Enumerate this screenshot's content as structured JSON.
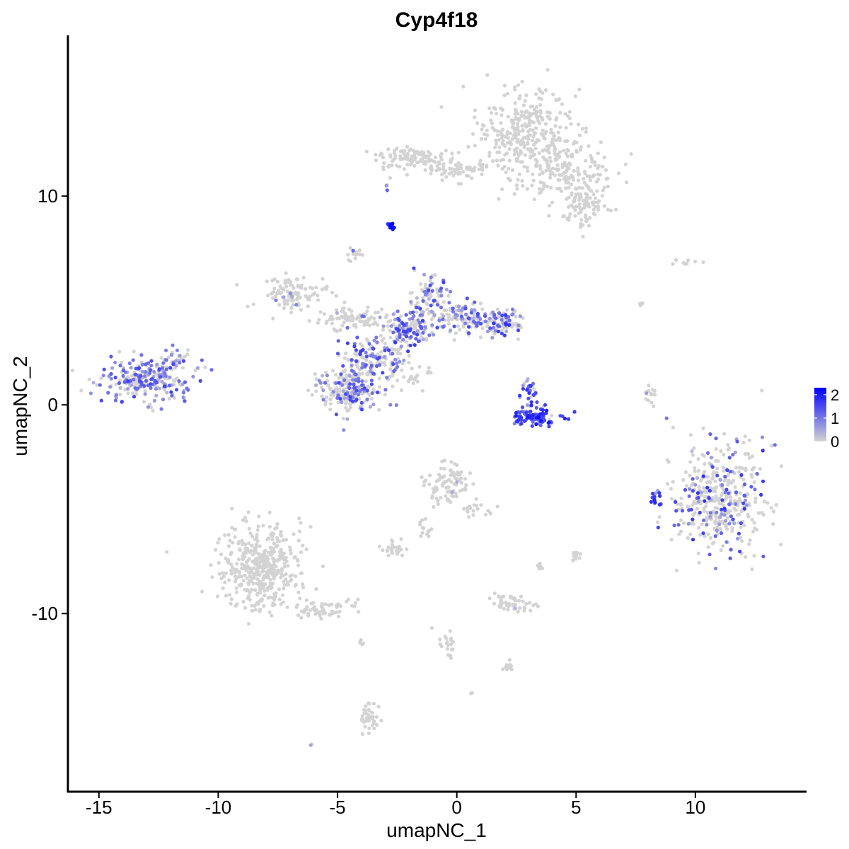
{
  "chart_data": {
    "type": "scatter",
    "title": "Cyp4f18",
    "xlabel": "umapNC_1",
    "ylabel": "umapNC_2",
    "xlim": [
      -16.3,
      14.6
    ],
    "ylim": [
      -18.5,
      17.7
    ],
    "x_ticks": [
      -15,
      -10,
      -5,
      0,
      5,
      10
    ],
    "x_tick_labels": [
      "-15",
      "-10",
      "-5",
      "0",
      "5",
      "10"
    ],
    "y_ticks": [
      -10,
      0,
      10
    ],
    "y_tick_labels": [
      "-10",
      "0",
      "10"
    ],
    "grid": false,
    "legend": {
      "placement": "right",
      "type": "colorbar",
      "ticks": [
        0,
        1,
        2
      ],
      "tick_labels": [
        "0",
        "1",
        "2"
      ],
      "range": [
        0,
        2.3
      ],
      "color_low": "#d3d3d3",
      "color_high": "#0000ff"
    },
    "point_color_low": "#d3d3d3",
    "point_color_high": "#0000ff",
    "clusters": [
      {
        "cx": 2.8,
        "cy": 13.0,
        "rx": 1.8,
        "ry": 2.0,
        "n": 320,
        "expr_frac": 0.0,
        "expr_max": 0.5
      },
      {
        "cx": 4.5,
        "cy": 11.2,
        "rx": 2.0,
        "ry": 1.3,
        "n": 160,
        "expr_frac": 0.0,
        "expr_max": 0.5
      },
      {
        "cx": 5.3,
        "cy": 9.5,
        "rx": 0.9,
        "ry": 0.9,
        "n": 80,
        "expr_frac": 0.0,
        "expr_max": 0.5
      },
      {
        "cx": -1.8,
        "cy": 11.8,
        "rx": 1.6,
        "ry": 0.5,
        "n": 120,
        "expr_frac": 0.0,
        "expr_max": 0.5
      },
      {
        "cx": 0.3,
        "cy": 11.3,
        "rx": 1.5,
        "ry": 0.4,
        "n": 60,
        "expr_frac": 0.0,
        "expr_max": 0.5
      },
      {
        "cx": -2.8,
        "cy": 8.6,
        "rx": 0.15,
        "ry": 0.2,
        "n": 12,
        "expr_frac": 1.0,
        "expr_min": 1.8,
        "expr_max": 2.3
      },
      {
        "cx": -2.9,
        "cy": 10.3,
        "rx": 0.05,
        "ry": 0.3,
        "n": 3,
        "expr_frac": 0.7,
        "expr_max": 1.5
      },
      {
        "cx": -13.0,
        "cy": 1.2,
        "rx": 1.7,
        "ry": 0.9,
        "n": 260,
        "expr_frac": 0.55,
        "expr_max": 1.6
      },
      {
        "cx": -11.8,
        "cy": 2.2,
        "rx": 0.5,
        "ry": 0.4,
        "n": 30,
        "expr_frac": 0.3,
        "expr_max": 1.2
      },
      {
        "cx": -6.8,
        "cy": 5.3,
        "rx": 1.4,
        "ry": 0.7,
        "n": 110,
        "expr_frac": 0.05,
        "expr_max": 1.0
      },
      {
        "cx": -4.6,
        "cy": 4.1,
        "rx": 1.2,
        "ry": 0.5,
        "n": 80,
        "expr_frac": 0.1,
        "expr_max": 1.2
      },
      {
        "cx": -4.5,
        "cy": 0.8,
        "rx": 1.3,
        "ry": 1.1,
        "n": 230,
        "expr_frac": 0.35,
        "expr_max": 1.6
      },
      {
        "cx": -3.5,
        "cy": 2.3,
        "rx": 1.1,
        "ry": 0.9,
        "n": 140,
        "expr_frac": 0.45,
        "expr_max": 1.7
      },
      {
        "cx": -2.1,
        "cy": 3.6,
        "rx": 1.1,
        "ry": 0.9,
        "n": 140,
        "expr_frac": 0.5,
        "expr_max": 1.7
      },
      {
        "cx": -1.2,
        "cy": 5.0,
        "rx": 0.8,
        "ry": 1.2,
        "n": 90,
        "expr_frac": 0.45,
        "expr_max": 1.6
      },
      {
        "cx": 0.4,
        "cy": 4.2,
        "rx": 1.2,
        "ry": 0.7,
        "n": 110,
        "expr_frac": 0.4,
        "expr_max": 1.6
      },
      {
        "cx": 2.0,
        "cy": 4.0,
        "rx": 0.8,
        "ry": 0.6,
        "n": 90,
        "expr_frac": 0.55,
        "expr_max": 1.8
      },
      {
        "cx": -4.3,
        "cy": 7.2,
        "rx": 0.3,
        "ry": 0.3,
        "n": 14,
        "expr_frac": 0.3,
        "expr_max": 1.2
      },
      {
        "cx": -1.9,
        "cy": 1.3,
        "rx": 1.0,
        "ry": 0.5,
        "n": 30,
        "expr_frac": 0.0,
        "expr_max": 0.5
      },
      {
        "cx": 3.3,
        "cy": -0.6,
        "rx": 0.9,
        "ry": 0.4,
        "n": 100,
        "expr_frac": 0.9,
        "expr_min": 0.9,
        "expr_max": 2.2
      },
      {
        "cx": 3.1,
        "cy": 0.6,
        "rx": 0.4,
        "ry": 0.6,
        "n": 30,
        "expr_frac": 0.8,
        "expr_max": 2.0
      },
      {
        "cx": 11.0,
        "cy": -4.5,
        "rx": 1.7,
        "ry": 2.2,
        "n": 420,
        "expr_frac": 0.25,
        "expr_max": 1.8
      },
      {
        "cx": 8.3,
        "cy": -4.5,
        "rx": 0.2,
        "ry": 0.4,
        "n": 14,
        "expr_frac": 0.9,
        "expr_max": 1.9
      },
      {
        "cx": 8.1,
        "cy": 0.5,
        "rx": 0.2,
        "ry": 0.6,
        "n": 14,
        "expr_frac": 0.2,
        "expr_max": 1.0
      },
      {
        "cx": -0.4,
        "cy": -3.8,
        "rx": 0.8,
        "ry": 0.8,
        "n": 90,
        "expr_frac": 0.05,
        "expr_max": 1.4
      },
      {
        "cx": 0.9,
        "cy": -5.0,
        "rx": 0.6,
        "ry": 0.4,
        "n": 20,
        "expr_frac": 0.0,
        "expr_max": 0.5
      },
      {
        "cx": -1.3,
        "cy": -6.0,
        "rx": 0.3,
        "ry": 0.5,
        "n": 14,
        "expr_frac": 0.0,
        "expr_max": 0.5
      },
      {
        "cx": -8.2,
        "cy": -7.8,
        "rx": 1.5,
        "ry": 1.8,
        "n": 420,
        "expr_frac": 0.0,
        "expr_max": 0.6
      },
      {
        "cx": -5.6,
        "cy": -9.8,
        "rx": 1.2,
        "ry": 0.5,
        "n": 60,
        "expr_frac": 0.0,
        "expr_max": 0.6
      },
      {
        "cx": -3.6,
        "cy": -15.0,
        "rx": 0.4,
        "ry": 0.7,
        "n": 40,
        "expr_frac": 0.0,
        "expr_max": 0.5
      },
      {
        "cx": -2.6,
        "cy": -6.9,
        "rx": 0.5,
        "ry": 0.3,
        "n": 30,
        "expr_frac": 0.05,
        "expr_max": 1.4
      },
      {
        "cx": 2.4,
        "cy": -9.5,
        "rx": 0.7,
        "ry": 0.4,
        "n": 50,
        "expr_frac": 0.05,
        "expr_max": 1.2
      },
      {
        "cx": -0.3,
        "cy": -11.5,
        "rx": 0.4,
        "ry": 0.7,
        "n": 20,
        "expr_frac": 0.0,
        "expr_max": 0.5
      },
      {
        "cx": 2.2,
        "cy": -12.5,
        "rx": 0.3,
        "ry": 0.2,
        "n": 12,
        "expr_frac": 0.0,
        "expr_max": 0.5
      },
      {
        "cx": 5.0,
        "cy": -7.2,
        "rx": 0.2,
        "ry": 0.3,
        "n": 10,
        "expr_frac": 0.0,
        "expr_max": 0.5
      },
      {
        "cx": 3.5,
        "cy": -7.7,
        "rx": 0.15,
        "ry": 0.2,
        "n": 5,
        "expr_frac": 0.0,
        "expr_max": 0.5
      },
      {
        "cx": -4.0,
        "cy": -11.4,
        "rx": 0.1,
        "ry": 0.3,
        "n": 5,
        "expr_frac": 0.0,
        "expr_max": 0.5
      },
      {
        "cx": 9.5,
        "cy": 6.8,
        "rx": 0.6,
        "ry": 0.2,
        "n": 8,
        "expr_frac": 0.0,
        "expr_max": 0.5
      },
      {
        "cx": 7.8,
        "cy": 4.8,
        "rx": 0.1,
        "ry": 0.2,
        "n": 3,
        "expr_frac": 0.0,
        "expr_max": 0.5
      },
      {
        "cx": -6.1,
        "cy": -16.3,
        "rx": 0.05,
        "ry": 0.05,
        "n": 2,
        "expr_frac": 0.5,
        "expr_max": 1.0
      },
      {
        "cx": 0.6,
        "cy": -13.8,
        "rx": 0.1,
        "ry": 0.1,
        "n": 2,
        "expr_frac": 0.0,
        "expr_max": 0.5
      }
    ]
  }
}
